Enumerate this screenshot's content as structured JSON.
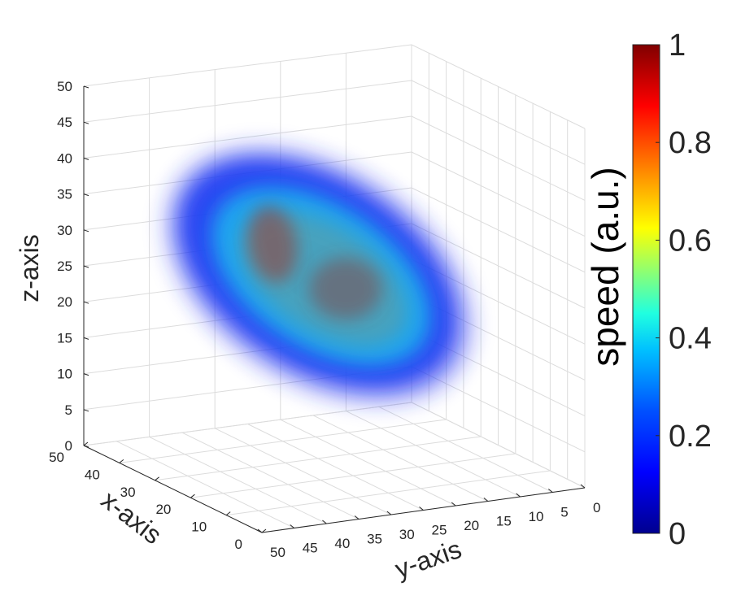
{
  "chart_data": {
    "type": "volume",
    "xlabel": "x-axis",
    "ylabel": "y-axis",
    "zlabel": "z-axis",
    "xlim": [
      0,
      50
    ],
    "ylim": [
      0,
      50
    ],
    "zlim": [
      0,
      50
    ],
    "x_ticks": [
      "0",
      "10",
      "20",
      "30",
      "40",
      "50"
    ],
    "y_ticks": [
      "0",
      "5",
      "10",
      "15",
      "20",
      "25",
      "30",
      "35",
      "40",
      "45",
      "50"
    ],
    "z_ticks": [
      "0",
      "5",
      "10",
      "15",
      "20",
      "25",
      "30",
      "35",
      "40",
      "45",
      "50"
    ],
    "grid": true,
    "colormap": "jet",
    "colorbar": {
      "label": "speed (a.u.)",
      "ticks": [
        "0",
        "0.2",
        "0.4",
        "0.6",
        "0.8",
        "1"
      ],
      "range": [
        0,
        1
      ],
      "colors": [
        "#00008f",
        "#0000ff",
        "#0080ff",
        "#00ffff",
        "#80ff80",
        "#ffff00",
        "#ff8000",
        "#ff0000",
        "#800000"
      ]
    },
    "volume": {
      "description_colors": {
        "outer_shell": "#1a3cf0",
        "inner_shell": "#1fb4f0",
        "core": "#8a3a30"
      }
    }
  }
}
